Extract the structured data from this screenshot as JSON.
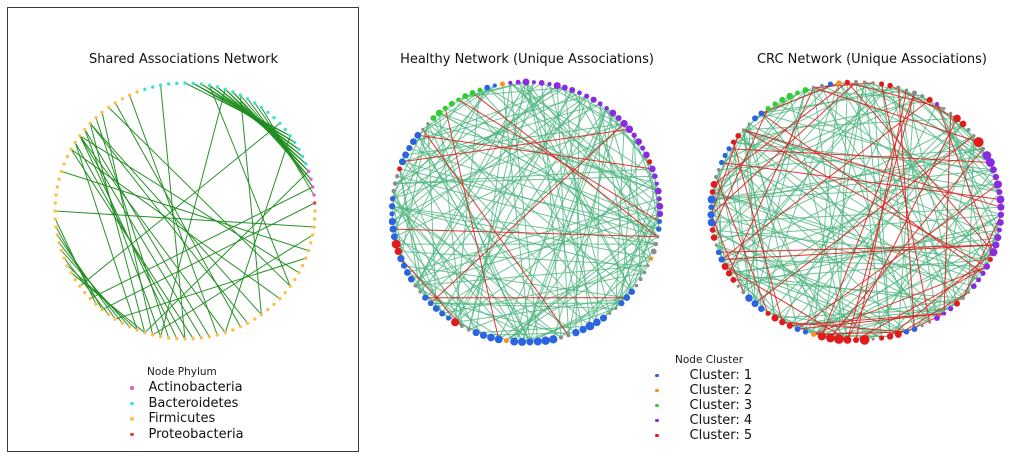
{
  "legend_phylum": {
    "title": "Node Phylum",
    "items": [
      "Actinobacteria",
      "Bacteroidetes",
      "Firmicutes",
      "Proteobacteria"
    ]
  },
  "legend_cluster": {
    "title": "Node Cluster",
    "items": [
      "Cluster: 1",
      "Cluster: 2",
      "Cluster: 3",
      "Cluster: 4",
      "Cluster: 5"
    ]
  },
  "chart_data": {
    "type": "network-circular",
    "layout": "three circular (chord) network plots side by side; left plot framed with black box; node colors = phylum (left) or cluster (middle/right); edge colors: dark green = shared/positive, light green = positive unique, red = negative unique",
    "palette": {
      "actinobacteria": "#da5ed6",
      "bacteroidetes": "#40e0d0",
      "firmicutes": "#fdc04e",
      "proteobacteria": "#f23d3d",
      "cluster1": "#2b63e1",
      "cluster2": "#ff8c1a",
      "cluster3": "#32cd32",
      "cluster4": "#8a2be2",
      "cluster5": "#e31a1c",
      "gray": "#8c8c8c",
      "edge_shared": "#1e8b1e",
      "edge_green": "#4fb57f",
      "edge_red": "#e02020"
    },
    "plots": [
      {
        "title": "Shared Associations Network",
        "center": [
          185,
          211
        ],
        "radius": [
          130,
          128
        ],
        "start_angle_deg": 108,
        "node_size_seed": 2,
        "node_segments": [
          {
            "color": "bacteroidetes",
            "count": 25,
            "r": [
              1.7,
              1.7
            ]
          },
          {
            "color": "actinobacteria",
            "count": 4,
            "r": [
              1.7,
              1.7
            ]
          },
          {
            "color": "proteobacteria",
            "count": 1,
            "r": [
              1.7,
              1.7
            ]
          },
          {
            "color": "firmicutes",
            "count": 70,
            "r": [
              1.7,
              1.7
            ]
          }
        ],
        "edge_groups": [
          {
            "color_key": "edge_shared",
            "width": 1,
            "opacity": 0.95,
            "pairs": [
              [
                5,
                20
              ],
              [
                6,
                20
              ],
              [
                6,
                21
              ],
              [
                7,
                21
              ],
              [
                7,
                22
              ],
              [
                8,
                22
              ],
              [
                8,
                23
              ],
              [
                9,
                23
              ],
              [
                9,
                24
              ],
              [
                10,
                24
              ],
              [
                10,
                25
              ],
              [
                11,
                25
              ],
              [
                11,
                26
              ],
              [
                12,
                26
              ],
              [
                13,
                27
              ],
              [
                14,
                27
              ],
              [
                15,
                28
              ],
              [
                90,
                50
              ],
              [
                90,
                53
              ],
              [
                90,
                56
              ],
              [
                91,
                58
              ],
              [
                91,
                52
              ],
              [
                89,
                55
              ],
              [
                92,
                60
              ],
              [
                92,
                47
              ],
              [
                89,
                61
              ],
              [
                93,
                57
              ],
              [
                88,
                54
              ],
              [
                94,
                59
              ],
              [
                62,
                75
              ],
              [
                63,
                76
              ],
              [
                64,
                77
              ],
              [
                65,
                74
              ],
              [
                66,
                78
              ],
              [
                61,
                73
              ],
              [
                60,
                72
              ],
              [
                67,
                79
              ],
              [
                2,
                55
              ],
              [
                10,
                58
              ],
              [
                18,
                70
              ],
              [
                25,
                60
              ],
              [
                27,
                68
              ],
              [
                29,
                66
              ],
              [
                32,
                80
              ],
              [
                35,
                85
              ],
              [
                38,
                90
              ],
              [
                40,
                95
              ],
              [
                33,
                59
              ],
              [
                36,
                64
              ],
              [
                42,
                88
              ],
              [
                45,
                92
              ],
              [
                48,
                96
              ],
              [
                51,
                98
              ],
              [
                12,
                45
              ],
              [
                8,
                40
              ],
              [
                20,
                50
              ]
            ]
          }
        ]
      },
      {
        "title": "Healthy Network (Unique Associations)",
        "center": [
          526,
          212
        ],
        "radius": [
          134,
          130
        ],
        "start_angle_deg": 90,
        "node_size_seed": 3,
        "node_segments": [
          {
            "color": "cluster4",
            "count": 20,
            "r": [
              2,
              4
            ]
          },
          {
            "color": "cluster5",
            "count": 1,
            "r": [
              2.5,
              2.5
            ]
          },
          {
            "color": "cluster4",
            "count": 7,
            "r": [
              2,
              3.5
            ]
          },
          {
            "color": "cluster1",
            "count": 2,
            "r": [
              2,
              3
            ]
          },
          {
            "color": "gray",
            "count": 3,
            "r": [
              1.5,
              3.5
            ]
          },
          {
            "color": "cluster2",
            "count": 1,
            "r": [
              2,
              2
            ]
          },
          {
            "color": "gray",
            "count": 4,
            "r": [
              1.5,
              2
            ]
          },
          {
            "color": "cluster1",
            "count": 3,
            "r": [
              2.5,
              3.5
            ]
          },
          {
            "color": "gray",
            "count": 2,
            "r": [
              1.5,
              1.5
            ]
          },
          {
            "color": "cluster1",
            "count": 5,
            "r": [
              3,
              4.5
            ]
          },
          {
            "color": "gray",
            "count": 2,
            "r": [
              1.5,
              2.5
            ]
          },
          {
            "color": "cluster1",
            "count": 6,
            "r": [
              3,
              4.5
            ]
          },
          {
            "color": "cluster2",
            "count": 1,
            "r": [
              2.5,
              2.5
            ]
          },
          {
            "color": "cluster1",
            "count": 4,
            "r": [
              2.5,
              4
            ]
          },
          {
            "color": "gray",
            "count": 2,
            "r": [
              1.5,
              2
            ]
          },
          {
            "color": "cluster5",
            "count": 1,
            "r": [
              4,
              4
            ]
          },
          {
            "color": "cluster1",
            "count": 5,
            "r": [
              2.5,
              3.5
            ]
          },
          {
            "color": "gray",
            "count": 2,
            "r": [
              1.5,
              2.5
            ]
          },
          {
            "color": "cluster1",
            "count": 4,
            "r": [
              2.5,
              4
            ]
          },
          {
            "color": "cluster5",
            "count": 2,
            "r": [
              3.5,
              4.5
            ]
          },
          {
            "color": "cluster1",
            "count": 6,
            "r": [
              2.5,
              4
            ]
          },
          {
            "color": "gray",
            "count": 3,
            "r": [
              1.5,
              2.5
            ]
          },
          {
            "color": "cluster5",
            "count": 1,
            "r": [
              2.5,
              2.5
            ]
          },
          {
            "color": "cluster1",
            "count": 5,
            "r": [
              2.5,
              3.5
            ]
          },
          {
            "color": "gray",
            "count": 2,
            "r": [
              1.5,
              1.5
            ]
          },
          {
            "color": "cluster3",
            "count": 8,
            "r": [
              2,
              3.5
            ]
          },
          {
            "color": "cluster1",
            "count": 2,
            "r": [
              2,
              3
            ]
          },
          {
            "color": "cluster2",
            "count": 1,
            "r": [
              2.5,
              2.5
            ]
          },
          {
            "color": "cluster4",
            "count": 2,
            "r": [
              2,
              3
            ]
          }
        ],
        "edge_groups": [
          {
            "color_key": "edge_green",
            "width": 1,
            "opacity": 0.8,
            "count": 170,
            "seed": 5
          },
          {
            "color_key": "edge_red",
            "width": 1,
            "opacity": 0.9,
            "count": 11,
            "seed": 9
          }
        ]
      },
      {
        "title": "CRC Network (Unique Associations)",
        "center": [
          856,
          211
        ],
        "radius": [
          145,
          129
        ],
        "start_angle_deg": 90,
        "node_size_seed": 4,
        "node_segments": [
          {
            "color": "gray",
            "count": 3,
            "r": [
              1.5,
              2
            ]
          },
          {
            "color": "cluster5",
            "count": 2,
            "r": [
              2.5,
              3.5
            ]
          },
          {
            "color": "gray",
            "count": 4,
            "r": [
              1.5,
              2.5
            ]
          },
          {
            "color": "cluster5",
            "count": 1,
            "r": [
              3,
              3
            ]
          },
          {
            "color": "cluster4",
            "count": 1,
            "r": [
              2,
              2
            ]
          },
          {
            "color": "gray",
            "count": 2,
            "r": [
              1.5,
              1.5
            ]
          },
          {
            "color": "cluster5",
            "count": 2,
            "r": [
              2.5,
              4
            ]
          },
          {
            "color": "gray",
            "count": 2,
            "r": [
              1.5,
              2
            ]
          },
          {
            "color": "cluster5",
            "count": 1,
            "r": [
              5,
              5
            ]
          },
          {
            "color": "gray",
            "count": 1,
            "r": [
              2,
              2
            ]
          },
          {
            "color": "cluster4",
            "count": 14,
            "r": [
              2.5,
              4.5
            ]
          },
          {
            "color": "cluster5",
            "count": 1,
            "r": [
              2.5,
              2.5
            ]
          },
          {
            "color": "cluster4",
            "count": 4,
            "r": [
              2,
              3.5
            ]
          },
          {
            "color": "gray",
            "count": 2,
            "r": [
              1.5,
              2
            ]
          },
          {
            "color": "cluster5",
            "count": 1,
            "r": [
              3,
              3
            ]
          },
          {
            "color": "cluster4",
            "count": 3,
            "r": [
              2,
              3
            ]
          },
          {
            "color": "gray",
            "count": 2,
            "r": [
              1.5,
              1.5
            ]
          },
          {
            "color": "cluster1",
            "count": 2,
            "r": [
              2.5,
              3.5
            ]
          },
          {
            "color": "cluster5",
            "count": 3,
            "r": [
              2.5,
              4
            ]
          },
          {
            "color": "gray",
            "count": 1,
            "r": [
              1.5,
              1.5
            ]
          },
          {
            "color": "cluster5",
            "count": 6,
            "r": [
              3,
              5
            ]
          },
          {
            "color": "cluster2",
            "count": 1,
            "r": [
              2.5,
              2.5
            ]
          },
          {
            "color": "cluster1",
            "count": 2,
            "r": [
              2.5,
              3
            ]
          },
          {
            "color": "cluster5",
            "count": 4,
            "r": [
              2.5,
              4
            ]
          },
          {
            "color": "cluster1",
            "count": 3,
            "r": [
              3,
              4
            ]
          },
          {
            "color": "gray",
            "count": 2,
            "r": [
              1.5,
              2
            ]
          },
          {
            "color": "cluster5",
            "count": 3,
            "r": [
              2.5,
              3.5
            ]
          },
          {
            "color": "cluster1",
            "count": 2,
            "r": [
              2.5,
              3.5
            ]
          },
          {
            "color": "gray",
            "count": 1,
            "r": [
              1.5,
              1.5
            ]
          },
          {
            "color": "cluster5",
            "count": 2,
            "r": [
              2.5,
              3.5
            ]
          },
          {
            "color": "cluster1",
            "count": 4,
            "r": [
              2.5,
              4
            ]
          },
          {
            "color": "cluster5",
            "count": 2,
            "r": [
              2.5,
              3.5
            ]
          },
          {
            "color": "gray",
            "count": 2,
            "r": [
              1.5,
              2
            ]
          },
          {
            "color": "cluster1",
            "count": 3,
            "r": [
              2.5,
              3.5
            ]
          },
          {
            "color": "cluster5",
            "count": 2,
            "r": [
              2.5,
              3
            ]
          },
          {
            "color": "gray",
            "count": 2,
            "r": [
              1.5,
              1.5
            ]
          },
          {
            "color": "cluster1",
            "count": 2,
            "r": [
              2.5,
              3
            ]
          },
          {
            "color": "cluster3",
            "count": 6,
            "r": [
              2,
              3.5
            ]
          },
          {
            "color": "gray",
            "count": 2,
            "r": [
              1.5,
              2
            ]
          },
          {
            "color": "cluster1",
            "count": 1,
            "r": [
              2.5,
              2.5
            ]
          },
          {
            "color": "cluster2",
            "count": 1,
            "r": [
              2.5,
              2.5
            ]
          },
          {
            "color": "cluster5",
            "count": 1,
            "r": [
              2.5,
              2.5
            ]
          }
        ],
        "edge_groups": [
          {
            "color_key": "edge_green",
            "width": 1,
            "opacity": 0.8,
            "count": 175,
            "seed": 3
          },
          {
            "color_key": "edge_red",
            "width": 1,
            "opacity": 0.9,
            "count": 44,
            "seed": 8
          }
        ]
      }
    ]
  }
}
